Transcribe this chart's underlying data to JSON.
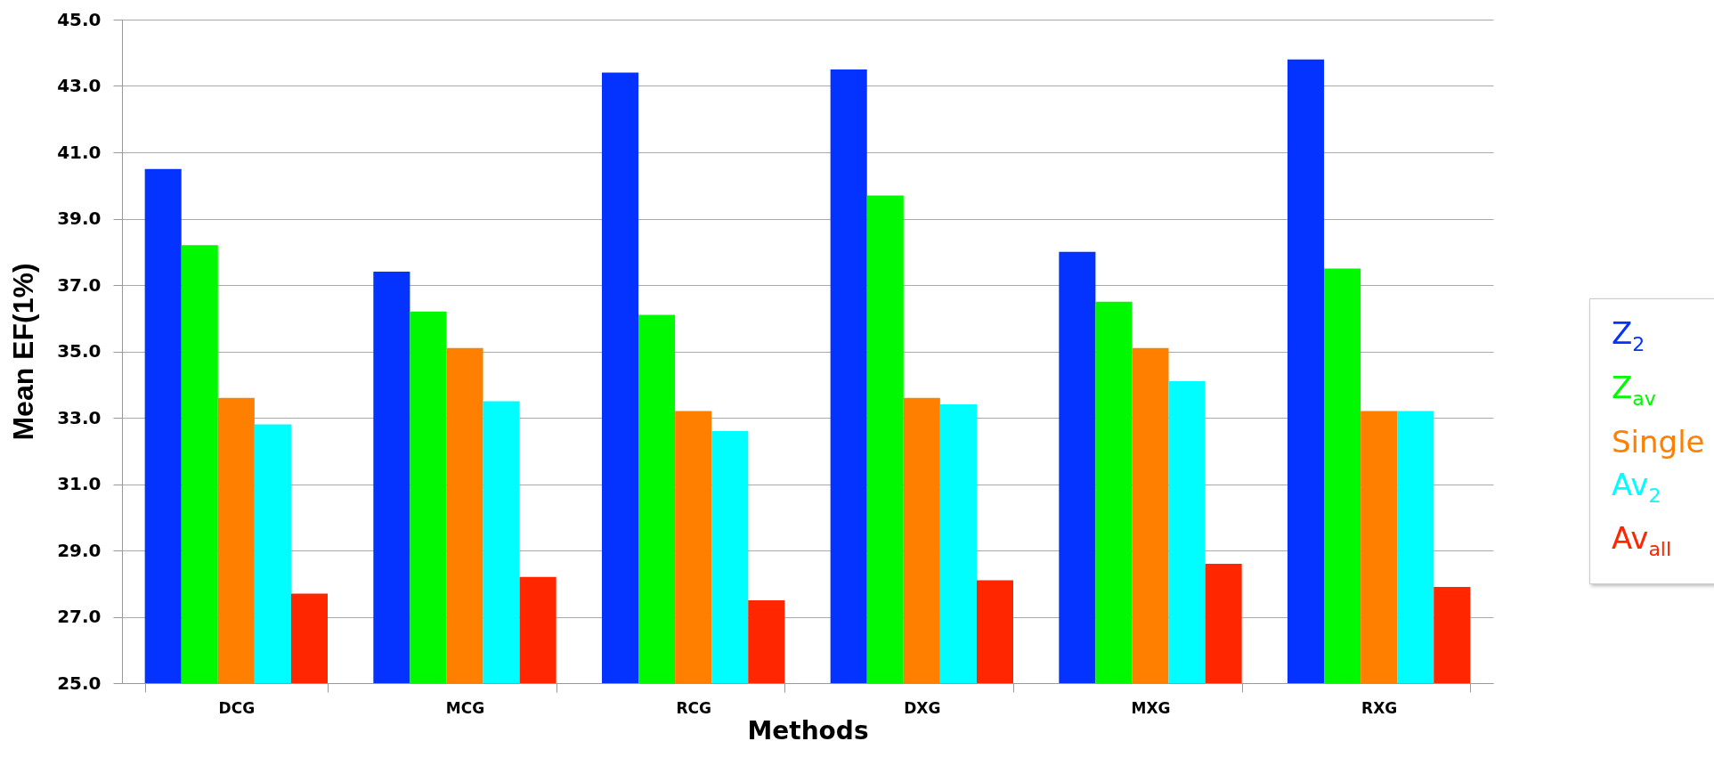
{
  "chart_data": {
    "type": "bar",
    "xlabel": "Methods",
    "ylabel": "Mean EF(1%)",
    "categories": [
      "DCG",
      "MCG",
      "RCG",
      "DXG",
      "MXG",
      "RXG"
    ],
    "series": [
      {
        "name": "Z$_{2}$",
        "color": "#0433ff",
        "values": [
          40.5,
          37.4,
          43.4,
          43.5,
          38.0,
          43.8
        ]
      },
      {
        "name": "Z$_{av}$",
        "color": "#00f900",
        "values": [
          38.2,
          36.2,
          36.1,
          39.7,
          36.5,
          37.5
        ]
      },
      {
        "name": "Single",
        "color": "#ff7f00",
        "values": [
          33.6,
          35.1,
          33.2,
          33.6,
          35.1,
          33.2
        ]
      },
      {
        "name": "Av$_{2}$",
        "color": "#00fdff",
        "values": [
          32.8,
          33.5,
          32.6,
          33.4,
          34.1,
          33.2
        ]
      },
      {
        "name": "Av$_{all}$",
        "color": "#ff2600",
        "values": [
          27.7,
          28.2,
          27.5,
          28.1,
          28.6,
          27.9
        ]
      }
    ],
    "ylim": [
      25,
      45
    ],
    "yticks": [
      {
        "value": 25,
        "label": "25.0"
      },
      {
        "value": 27,
        "label": "27.0"
      },
      {
        "value": 29,
        "label": "29.0"
      },
      {
        "value": 31,
        "label": "31.0"
      },
      {
        "value": 33,
        "label": "33.0"
      },
      {
        "value": 35,
        "label": "35.0"
      },
      {
        "value": 37,
        "label": "37.0"
      },
      {
        "value": 39,
        "label": "39.0"
      },
      {
        "value": 41,
        "label": "41.0"
      },
      {
        "value": 43,
        "label": "43.0"
      },
      {
        "value": 45,
        "label": "45.0"
      }
    ],
    "grid": "y",
    "legend": "right"
  }
}
